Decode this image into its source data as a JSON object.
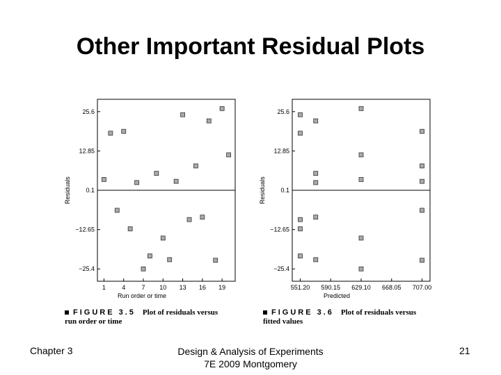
{
  "slide": {
    "title": "Other Important Residual Plots",
    "footer_left": "Chapter 3",
    "footer_center_line1": "Design & Analysis of Experiments",
    "footer_center_line2": "7E 2009 Montgomery",
    "page_number": "21"
  },
  "captions": [
    {
      "figure": "FIGURE 3.5",
      "desc": "Plot of residuals versus",
      "line2": "run order or time"
    },
    {
      "figure": "FIGURE 3.6",
      "desc": "Plot of residuals versus",
      "line2": "fitted values"
    }
  ],
  "chart_data": [
    {
      "type": "scatter",
      "xlabel": "Run order or time",
      "ylabel": "Residuals",
      "xlim": [
        0,
        21
      ],
      "ylim": [
        -29.4,
        29.6
      ],
      "x_ticks": [
        1,
        4,
        7,
        10,
        13,
        16,
        19
      ],
      "x_tick_labels": [
        "1",
        "4",
        "7",
        "10",
        "13",
        "16",
        "19"
      ],
      "y_ticks": [
        25.6,
        12.85,
        0.1,
        -12.65,
        -25.4
      ],
      "y_tick_labels": [
        "25.6",
        "12.85",
        "0.1",
        "−12.65",
        "−25.4"
      ],
      "reference_line": 0.1,
      "points": [
        {
          "x": 1,
          "y": 3.6
        },
        {
          "x": 2,
          "y": 18.6
        },
        {
          "x": 3,
          "y": -6.4
        },
        {
          "x": 4,
          "y": 19.2
        },
        {
          "x": 5,
          "y": -12.4
        },
        {
          "x": 6,
          "y": 2.6
        },
        {
          "x": 7,
          "y": -25.4
        },
        {
          "x": 8,
          "y": -21.2
        },
        {
          "x": 9,
          "y": 5.6
        },
        {
          "x": 10,
          "y": -15.4
        },
        {
          "x": 11,
          "y": -22.4
        },
        {
          "x": 12,
          "y": 3.0
        },
        {
          "x": 13,
          "y": 24.6
        },
        {
          "x": 14,
          "y": -9.4
        },
        {
          "x": 15,
          "y": 8.0
        },
        {
          "x": 16,
          "y": -8.6
        },
        {
          "x": 17,
          "y": 22.6
        },
        {
          "x": 18,
          "y": -22.6
        },
        {
          "x": 19,
          "y": 26.6
        },
        {
          "x": 20,
          "y": 11.6
        }
      ]
    },
    {
      "type": "scatter",
      "xlabel": "Predicted",
      "ylabel": "Residuals",
      "xlim": [
        540.98,
        717.22
      ],
      "ylim": [
        -29.4,
        29.6
      ],
      "x_ticks": [
        551.2,
        590.15,
        629.1,
        668.05,
        707.0
      ],
      "x_tick_labels": [
        "551.20",
        "590.15",
        "629.10",
        "668.05",
        "707.00"
      ],
      "y_ticks": [
        25.6,
        12.85,
        0.1,
        -12.65,
        -25.4
      ],
      "y_tick_labels": [
        "25.6",
        "12.85",
        "0.1",
        "−12.65",
        "−25.4"
      ],
      "reference_line": 0.1,
      "points": [
        {
          "x": 551.2,
          "y": 24.6
        },
        {
          "x": 551.2,
          "y": 18.6
        },
        {
          "x": 551.2,
          "y": -9.4
        },
        {
          "x": 551.2,
          "y": -12.4
        },
        {
          "x": 551.2,
          "y": -21.2
        },
        {
          "x": 571.0,
          "y": 22.6
        },
        {
          "x": 571.0,
          "y": 5.6
        },
        {
          "x": 571.0,
          "y": 2.6
        },
        {
          "x": 571.0,
          "y": -8.6
        },
        {
          "x": 571.0,
          "y": -22.4
        },
        {
          "x": 629.1,
          "y": 26.6
        },
        {
          "x": 629.1,
          "y": 11.6
        },
        {
          "x": 629.1,
          "y": 3.6
        },
        {
          "x": 629.1,
          "y": -15.4
        },
        {
          "x": 629.1,
          "y": -25.4
        },
        {
          "x": 707.0,
          "y": 19.2
        },
        {
          "x": 707.0,
          "y": 8.0
        },
        {
          "x": 707.0,
          "y": 3.0
        },
        {
          "x": 707.0,
          "y": -6.4
        },
        {
          "x": 707.0,
          "y": -22.6
        }
      ]
    }
  ]
}
